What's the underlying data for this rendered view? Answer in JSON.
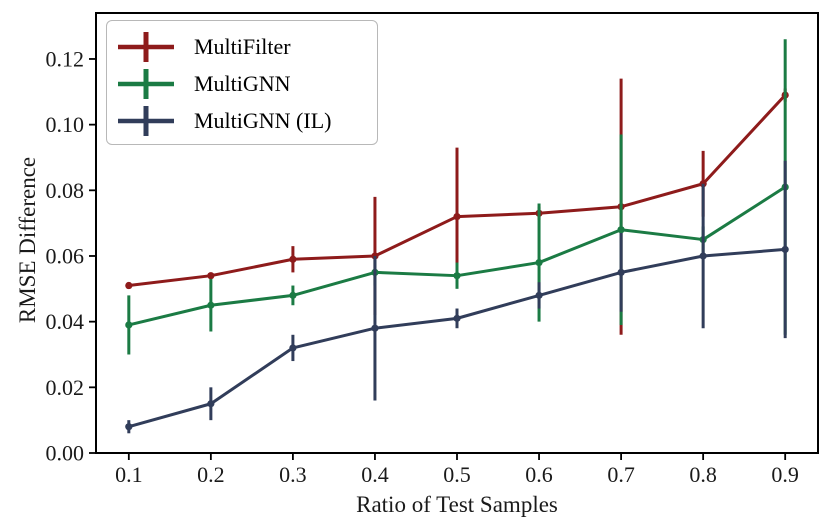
{
  "chart_data": {
    "type": "line",
    "title": "",
    "xlabel": "Ratio of Test Samples",
    "ylabel": "RMSE Difference",
    "x": [
      0.1,
      0.2,
      0.3,
      0.4,
      0.5,
      0.6,
      0.7,
      0.8,
      0.9
    ],
    "xticks": [
      "0.1",
      "0.2",
      "0.3",
      "0.4",
      "0.5",
      "0.6",
      "0.7",
      "0.8",
      "0.9"
    ],
    "yticks": [
      "0.00",
      "0.02",
      "0.04",
      "0.06",
      "0.08",
      "0.10",
      "0.12"
    ],
    "xlim": [
      0.06,
      0.94
    ],
    "ylim": [
      0,
      0.134
    ],
    "grid": false,
    "error_bars": true,
    "legend_position": "upper left",
    "background_color": "#ffffff",
    "frame_color": "#000000",
    "series": [
      {
        "name": "MultiFilter",
        "color": "#8e1b1b",
        "values": [
          0.051,
          0.054,
          0.059,
          0.06,
          0.072,
          0.073,
          0.075,
          0.082,
          0.109
        ],
        "errors": [
          0.001,
          0.001,
          0.004,
          0.018,
          0.021,
          0.002,
          0.039,
          0.01,
          0.002
        ]
      },
      {
        "name": "MultiGNN",
        "color": "#1b7b44",
        "values": [
          0.039,
          0.045,
          0.048,
          0.055,
          0.054,
          0.058,
          0.068,
          0.065,
          0.081
        ],
        "errors": [
          0.009,
          0.008,
          0.003,
          0.004,
          0.004,
          0.018,
          0.029,
          0.004,
          0.045
        ]
      },
      {
        "name": "MultiGNN (IL)",
        "color": "#313d5a",
        "values": [
          0.008,
          0.015,
          0.032,
          0.038,
          0.041,
          0.048,
          0.055,
          0.06,
          0.062
        ],
        "errors": [
          0.002,
          0.005,
          0.004,
          0.022,
          0.003,
          0.004,
          0.012,
          0.022,
          0.027
        ]
      }
    ]
  }
}
